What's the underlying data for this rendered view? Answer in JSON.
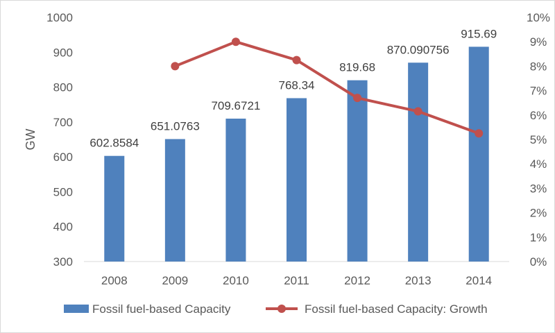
{
  "chart_data": {
    "type": "bar",
    "title": "",
    "categories": [
      "2008",
      "2009",
      "2010",
      "2011",
      "2012",
      "2013",
      "2014"
    ],
    "series": [
      {
        "name": "Fossil fuel-based Capacity",
        "type": "bar",
        "axis": "left",
        "color": "#4f81bd",
        "values": [
          602.8584,
          651.0763,
          709.6721,
          768.34,
          819.68,
          870.090756,
          915.69
        ],
        "labels": [
          "602.8584",
          "651.0763",
          "709.6721",
          "768.34",
          "819.68",
          "870.090756",
          "915.69"
        ]
      },
      {
        "name": "Fossil fuel-based Capacity: Growth",
        "type": "line",
        "axis": "right",
        "color": "#c0504d",
        "values": [
          null,
          0.08,
          0.09,
          0.0825,
          0.067,
          0.0615,
          0.0525
        ]
      }
    ],
    "ylabel": "GW",
    "ylim": [
      300,
      1000
    ],
    "yticks": [
      "300",
      "400",
      "500",
      "600",
      "700",
      "800",
      "900",
      "1000"
    ],
    "y2lim": [
      0,
      0.1
    ],
    "y2ticks": [
      "0%",
      "1%",
      "2%",
      "3%",
      "4%",
      "5%",
      "6%",
      "7%",
      "8%",
      "9%",
      "10%"
    ],
    "grid": false,
    "legend_position": "bottom"
  }
}
